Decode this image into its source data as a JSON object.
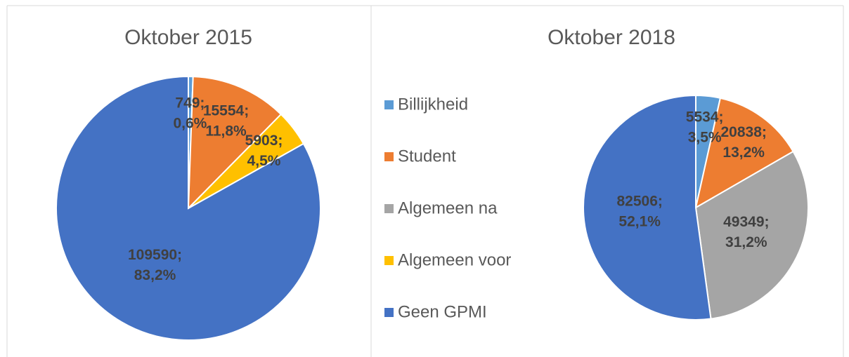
{
  "chart_data": [
    {
      "type": "pie",
      "title": "Oktober 2015",
      "categories": [
        "Billijkheid",
        "Student",
        "Algemeen voor",
        "Geen GPMI"
      ],
      "values": [
        749,
        15554,
        5903,
        109590
      ],
      "value_labels": [
        "749; 0,6%",
        "15554; 11,8%",
        "5903; 4,5%",
        "109590; 83,2%"
      ],
      "colors": [
        "#5b9bd5",
        "#ed7d31",
        "#ffc000",
        "#4472c4"
      ]
    },
    {
      "type": "pie",
      "title": "Oktober 2018",
      "categories": [
        "Billijkheid",
        "Student",
        "Algemeen na",
        "Geen GPMI"
      ],
      "values": [
        5534,
        20838,
        49349,
        82506
      ],
      "value_labels": [
        "5534; 3,5%",
        "20838; 13,2%",
        "49349; 31,2%",
        "82506; 52,1%"
      ],
      "colors": [
        "#5b9bd5",
        "#ed7d31",
        "#a5a5a5",
        "#4472c4"
      ]
    }
  ],
  "legend": [
    {
      "name": "Billijkheid",
      "color": "#5b9bd5"
    },
    {
      "name": "Student",
      "color": "#ed7d31"
    },
    {
      "name": "Algemeen na",
      "color": "#a5a5a5"
    },
    {
      "name": "Algemeen voor",
      "color": "#ffc000"
    },
    {
      "name": "Geen GPMI",
      "color": "#4472c4"
    }
  ]
}
